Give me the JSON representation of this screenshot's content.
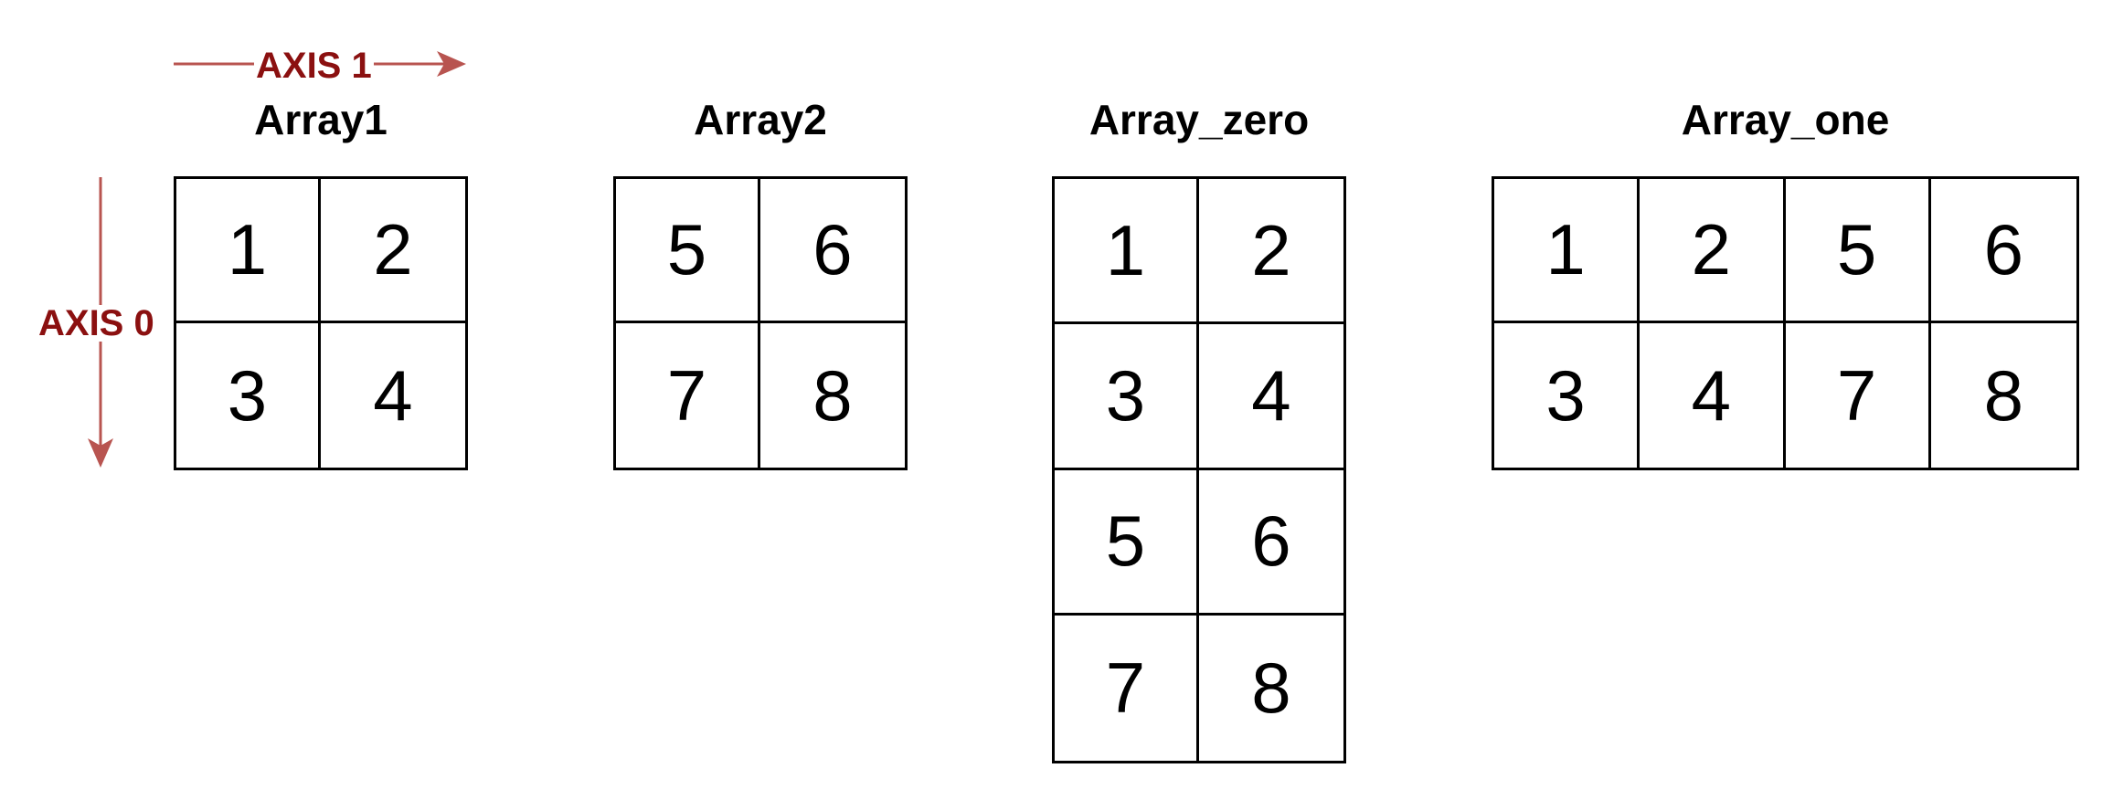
{
  "colors": {
    "axis": "#8b1010",
    "arrow": "#b85450",
    "grid": "#000000",
    "text": "#000000"
  },
  "axes": {
    "axis1": {
      "label": "AXIS 1",
      "direction": "right"
    },
    "axis0": {
      "label": "AXIS 0",
      "direction": "down"
    }
  },
  "arrays": [
    {
      "title": "Array1",
      "rows": 2,
      "cols": 2,
      "cells": [
        [
          "1",
          "2"
        ],
        [
          "3",
          "4"
        ]
      ]
    },
    {
      "title": "Array2",
      "rows": 2,
      "cols": 2,
      "cells": [
        [
          "5",
          "6"
        ],
        [
          "7",
          "8"
        ]
      ]
    },
    {
      "title": "Array_zero",
      "rows": 4,
      "cols": 2,
      "cells": [
        [
          "1",
          "2"
        ],
        [
          "3",
          "4"
        ],
        [
          "5",
          "6"
        ],
        [
          "7",
          "8"
        ]
      ]
    },
    {
      "title": "Array_one",
      "rows": 2,
      "cols": 4,
      "cells": [
        [
          "1",
          "2",
          "5",
          "6"
        ],
        [
          "3",
          "4",
          "7",
          "8"
        ]
      ]
    }
  ]
}
